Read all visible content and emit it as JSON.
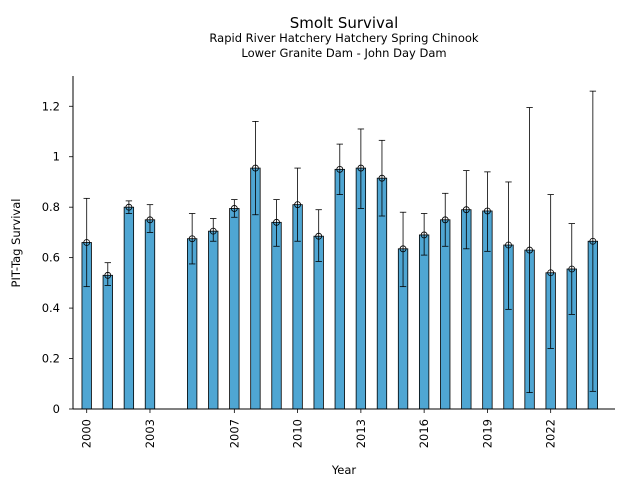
{
  "chart_data": {
    "type": "bar",
    "title": "Smolt Survival",
    "subtitle_lines": [
      "Rapid River Hatchery Hatchery Spring Chinook",
      "Lower Granite Dam - John Day Dam"
    ],
    "xlabel": "Year",
    "ylabel": "PIT-Tag Survival",
    "ylim": [
      0,
      1.32
    ],
    "xlim": [
      1999.35,
      2025.05
    ],
    "yticks": [
      0,
      0.2,
      0.4,
      0.6,
      0.8,
      1,
      1.2
    ],
    "ytick_labels": [
      "0",
      "0.2",
      "0.4",
      "0.6",
      "0.8",
      "1",
      "1.2"
    ],
    "xticks": [
      2000,
      2003,
      2007,
      2010,
      2013,
      2016,
      2019,
      2022
    ],
    "xtick_labels": [
      "2000",
      "2003",
      "2007",
      "2010",
      "2013",
      "2016",
      "2019",
      "2022"
    ],
    "grid": false,
    "bar_color": "#4fa6d3",
    "series": [
      {
        "x": [
          2000,
          2001,
          2002,
          2003,
          2005,
          2006,
          2007,
          2008,
          2009,
          2010,
          2011,
          2012,
          2013,
          2014,
          2015,
          2016,
          2017,
          2018,
          2019,
          2020,
          2021,
          2022,
          2023,
          2024
        ],
        "values": [
          0.66,
          0.53,
          0.8,
          0.75,
          0.675,
          0.705,
          0.795,
          0.955,
          0.74,
          0.81,
          0.685,
          0.95,
          0.955,
          0.915,
          0.635,
          0.69,
          0.75,
          0.79,
          0.785,
          0.65,
          0.63,
          0.54,
          0.555,
          0.665
        ],
        "err_low": [
          0.485,
          0.49,
          0.775,
          0.7,
          0.575,
          0.665,
          0.76,
          0.77,
          0.645,
          0.665,
          0.585,
          0.85,
          0.795,
          0.765,
          0.485,
          0.61,
          0.645,
          0.635,
          0.625,
          0.395,
          0.065,
          0.24,
          0.375,
          0.07
        ],
        "err_high": [
          0.835,
          0.58,
          0.825,
          0.81,
          0.775,
          0.755,
          0.83,
          1.14,
          0.83,
          0.955,
          0.79,
          1.05,
          1.11,
          1.065,
          0.78,
          0.775,
          0.855,
          0.945,
          0.94,
          0.9,
          1.195,
          0.85,
          0.735,
          1.26
        ]
      }
    ]
  }
}
